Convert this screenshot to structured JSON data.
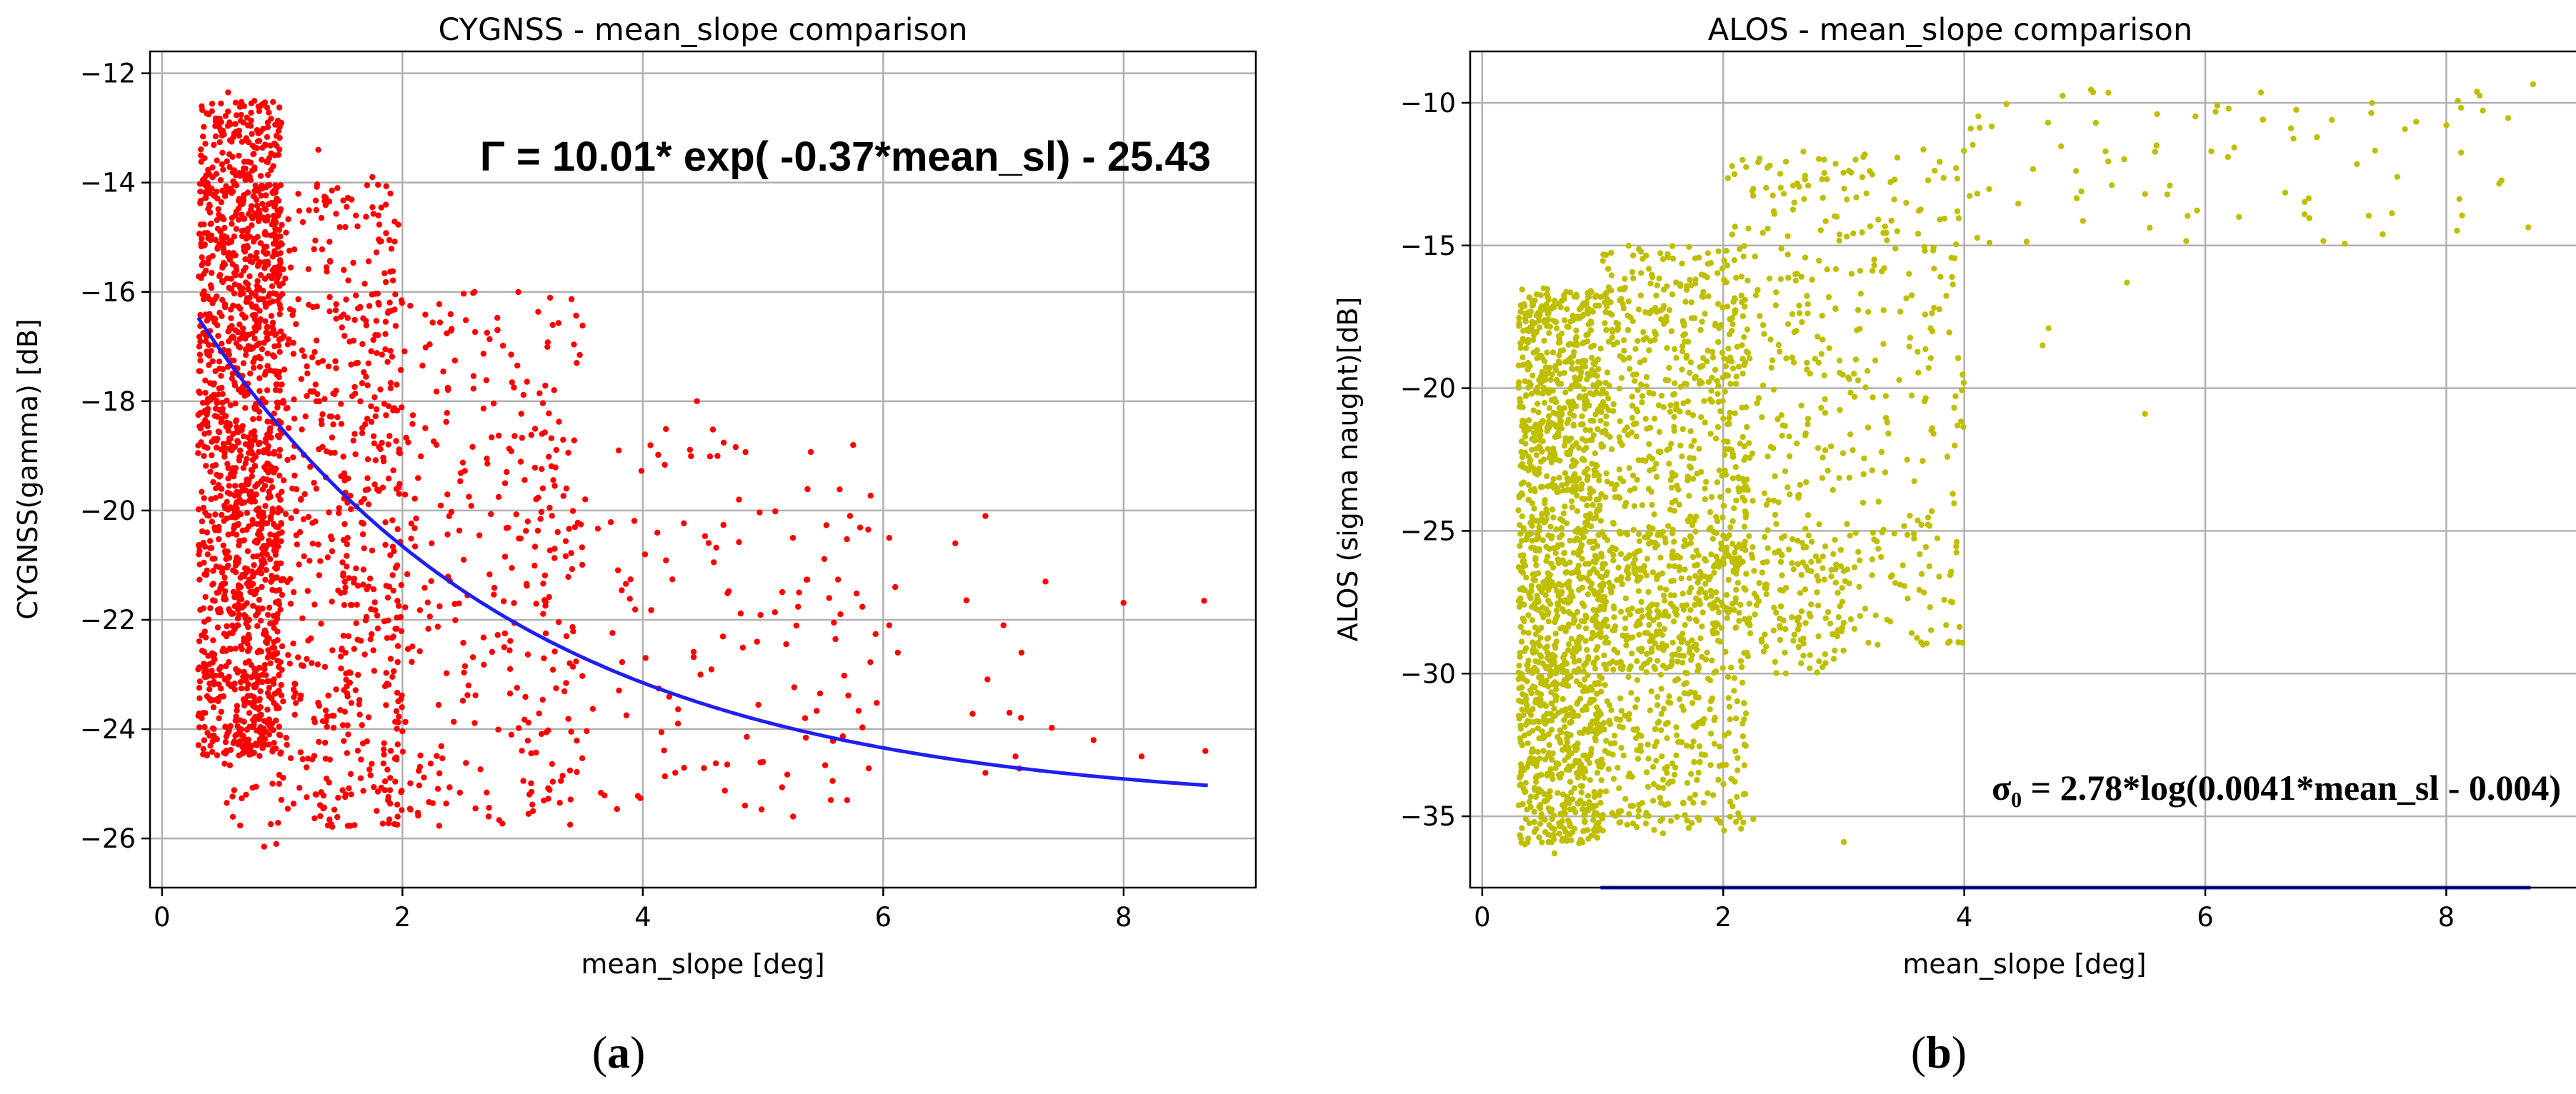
{
  "chart_data": [
    {
      "type": "scatter",
      "panel": "(a)",
      "panel_letter": "a",
      "title": "CYGNSS - mean_slope comparison",
      "xlabel": "mean_slope [deg]",
      "ylabel": "CYGNSS(gamma) [dB]",
      "xlim": [
        -0.1,
        9.1
      ],
      "ylim": [
        -26.9,
        -11.6
      ],
      "xticks": [
        0,
        2,
        4,
        6,
        8
      ],
      "yticks": [
        -26,
        -24,
        -22,
        -20,
        -18,
        -16,
        -14,
        -12
      ],
      "grid": true,
      "point_color": "#ff0000",
      "fit_color": "#1f1ff0",
      "equation": "Γ = 10.01* exp( -0.37*mean_sl) - 25.43",
      "fit": {
        "model": "exp",
        "a": 10.01,
        "b": -0.37,
        "c": -25.43,
        "x_range": [
          0.3,
          8.7
        ]
      },
      "scatter_clusters": [
        {
          "x_range": [
            0.3,
            1.0
          ],
          "y_range": [
            -24.5,
            -12.5
          ],
          "n": 1300
        },
        {
          "x_range": [
            0.5,
            2.0
          ],
          "y_range": [
            -25.8,
            -14.0
          ],
          "n": 700
        },
        {
          "x_range": [
            1.5,
            3.5
          ],
          "y_range": [
            -25.8,
            -16.0
          ],
          "n": 400
        },
        {
          "x_range": [
            3.0,
            6.0
          ],
          "y_range": [
            -25.5,
            -18.5
          ],
          "n": 140
        },
        {
          "x_range": [
            6.0,
            8.7
          ],
          "y_range": [
            -25.0,
            -20.0
          ],
          "n": 10
        }
      ],
      "points_sample": [
        [
          0.55,
          -12.35
        ],
        [
          0.82,
          -12.6
        ],
        [
          0.6,
          -13.1
        ],
        [
          1.3,
          -13.4
        ],
        [
          1.75,
          -13.9
        ],
        [
          1.9,
          -14.2
        ],
        [
          2.6,
          -16.0
        ],
        [
          3.45,
          -17.3
        ],
        [
          4.45,
          -18.0
        ],
        [
          3.8,
          -18.9
        ],
        [
          5.75,
          -18.8
        ],
        [
          4.8,
          -19.8
        ],
        [
          6.85,
          -20.1
        ],
        [
          6.05,
          -20.5
        ],
        [
          6.6,
          -20.6
        ],
        [
          7.35,
          -21.3
        ],
        [
          6.1,
          -21.4
        ],
        [
          5.3,
          -21.5
        ],
        [
          5.55,
          -21.6
        ],
        [
          6.05,
          -22.1
        ],
        [
          7.0,
          -22.1
        ],
        [
          7.15,
          -22.6
        ],
        [
          4.95,
          -22.4
        ],
        [
          7.05,
          -23.7
        ],
        [
          5.35,
          -23.8
        ],
        [
          7.75,
          -24.2
        ],
        [
          8.68,
          -24.4
        ],
        [
          7.1,
          -24.5
        ],
        [
          6.85,
          -24.8
        ],
        [
          5.0,
          -24.6
        ],
        [
          5.25,
          -25.6
        ],
        [
          4.85,
          -25.4
        ],
        [
          5.7,
          -25.3
        ],
        [
          0.95,
          -26.1
        ],
        [
          0.85,
          -26.15
        ]
      ]
    },
    {
      "type": "scatter",
      "panel": "(b)",
      "panel_letter": "b",
      "title": "ALOS - mean_slope comparison",
      "xlabel": "mean_slope [deg]",
      "ylabel": "ALOS (sigma naught)[dB]",
      "xlim": [
        -0.1,
        9.1
      ],
      "ylim": [
        -37.5,
        -8.2
      ],
      "xticks": [
        0,
        2,
        4,
        6,
        8
      ],
      "yticks": [
        -35,
        -30,
        -25,
        -20,
        -15,
        -10
      ],
      "grid": true,
      "point_color": "#bfbf00",
      "fit_color": "#1f1ff0",
      "equation": "σ₀ = 2.78*log(0.0041*mean_sl - 0.004)",
      "fit": {
        "model": "log10",
        "a": 2.78,
        "b": 0.0041,
        "c": -0.004,
        "x_range": [
          0.85,
          8.7
        ]
      },
      "scatter_clusters": [
        {
          "x_range": [
            0.3,
            1.0
          ],
          "y_range": [
            -36.0,
            -16.5
          ],
          "n": 1400
        },
        {
          "x_range": [
            1.0,
            2.2
          ],
          "y_range": [
            -35.5,
            -15.0
          ],
          "n": 900
        },
        {
          "x_range": [
            1.0,
            3.0
          ],
          "y_range": [
            -30.0,
            -25.0
          ],
          "n": 300
        },
        {
          "x_range": [
            2.0,
            4.0
          ],
          "y_range": [
            -29.0,
            -11.5
          ],
          "n": 450
        },
        {
          "x_range": [
            4.0,
            8.7
          ],
          "y_range": [
            -15.0,
            -9.4
          ],
          "n": 80
        }
      ],
      "points_sample": [
        [
          4.35,
          -10.05
        ],
        [
          6.1,
          -10.1
        ],
        [
          5.6,
          -10.4
        ],
        [
          7.05,
          -10.6
        ],
        [
          8.72,
          -9.35
        ],
        [
          6.05,
          -11.7
        ],
        [
          5.5,
          -13.2
        ],
        [
          5.35,
          -16.3
        ],
        [
          4.7,
          -17.9
        ],
        [
          4.65,
          -18.5
        ],
        [
          5.5,
          -20.9
        ],
        [
          3.9,
          -27.5
        ],
        [
          3.85,
          -28.3
        ],
        [
          3.0,
          -35.9
        ],
        [
          2.25,
          -35.1
        ],
        [
          0.55,
          -35.9
        ],
        [
          0.6,
          -36.3
        ],
        [
          1.0,
          -35.5
        ],
        [
          1.3,
          -34.6
        ],
        [
          1.5,
          -35.6
        ]
      ]
    }
  ]
}
